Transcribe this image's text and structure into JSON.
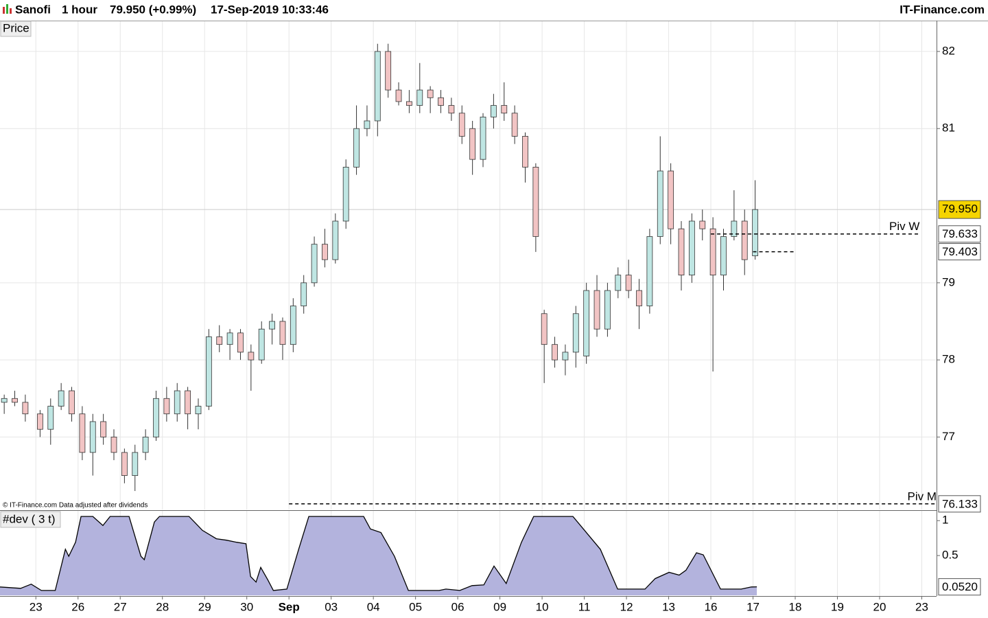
{
  "header": {
    "symbol": "Sanofi",
    "interval": "1 hour",
    "quote": "79.950 (+0.99%)",
    "datetime": "17-Sep-2019 10:33:46",
    "brand": "IT-Finance.com"
  },
  "footnote": "© IT-Finance.com  Data adjusted after dividends",
  "chart_data": [
    {
      "type": "candlestick",
      "panel_label": "Price",
      "xlim": [
        -0.85,
        21.35
      ],
      "ylim": [
        76.06,
        82.4
      ],
      "xticks": [
        {
          "value": 0,
          "label": "23"
        },
        {
          "value": 1,
          "label": "26"
        },
        {
          "value": 2,
          "label": "27"
        },
        {
          "value": 3,
          "label": "28"
        },
        {
          "value": 4,
          "label": "29"
        },
        {
          "value": 5,
          "label": "30"
        },
        {
          "value": 6,
          "label": "Sep"
        },
        {
          "value": 7,
          "label": "03"
        },
        {
          "value": 8,
          "label": "04"
        },
        {
          "value": 9,
          "label": "05"
        },
        {
          "value": 10,
          "label": "06"
        },
        {
          "value": 11,
          "label": "09"
        },
        {
          "value": 12,
          "label": "10"
        },
        {
          "value": 13,
          "label": "11"
        },
        {
          "value": 14,
          "label": "12"
        },
        {
          "value": 15,
          "label": "13"
        },
        {
          "value": 16,
          "label": "16"
        },
        {
          "value": 17,
          "label": "17"
        },
        {
          "value": 18,
          "label": "18"
        },
        {
          "value": 19,
          "label": "19"
        },
        {
          "value": 20,
          "label": "20"
        },
        {
          "value": 21,
          "label": "23"
        }
      ],
      "yticks": [
        77,
        78,
        79,
        81,
        82
      ],
      "grid": true,
      "up_color": "#bfe6e3",
      "down_color": "#f2c4c4",
      "x": [
        -0.75,
        -0.5,
        -0.25,
        0.1,
        0.35,
        0.6,
        0.85,
        1.1,
        1.35,
        1.6,
        1.85,
        2.1,
        2.35,
        2.6,
        2.85,
        3.1,
        3.35,
        3.6,
        3.85,
        4.1,
        4.35,
        4.6,
        4.85,
        5.1,
        5.35,
        5.6,
        5.85,
        6.1,
        6.35,
        6.6,
        6.85,
        7.1,
        7.35,
        7.6,
        7.85,
        8.1,
        8.35,
        8.6,
        8.85,
        9.1,
        9.35,
        9.6,
        9.85,
        10.1,
        10.35,
        10.6,
        10.85,
        11.1,
        11.35,
        11.6,
        11.85,
        12.05,
        12.3,
        12.55,
        12.8,
        13.05,
        13.3,
        13.55,
        13.8,
        14.05,
        14.3,
        14.55,
        14.8,
        15.05,
        15.3,
        15.55,
        15.8,
        16.05,
        16.3,
        16.55,
        16.8,
        17.05
      ],
      "open": [
        77.45,
        77.5,
        77.45,
        77.3,
        77.1,
        77.4,
        77.6,
        77.3,
        76.8,
        77.2,
        77.0,
        76.8,
        76.5,
        76.8,
        77.0,
        77.5,
        77.3,
        77.6,
        77.3,
        77.4,
        78.3,
        78.2,
        78.35,
        78.1,
        78.0,
        78.4,
        78.5,
        78.2,
        78.7,
        79.0,
        79.5,
        79.3,
        79.8,
        80.5,
        81.0,
        81.1,
        82.0,
        81.5,
        81.35,
        81.3,
        81.5,
        81.4,
        81.3,
        81.2,
        81.0,
        80.6,
        81.15,
        81.3,
        81.2,
        80.9,
        80.5,
        78.6,
        78.2,
        78.0,
        78.1,
        78.05,
        78.9,
        78.4,
        78.9,
        79.1,
        78.9,
        78.7,
        79.6,
        80.45,
        79.7,
        79.1,
        79.8,
        79.7,
        79.1,
        79.6,
        79.8,
        79.35
      ],
      "high": [
        77.55,
        77.6,
        77.55,
        77.35,
        77.5,
        77.7,
        77.65,
        77.4,
        77.3,
        77.3,
        77.1,
        76.85,
        76.9,
        77.1,
        77.6,
        77.65,
        77.7,
        77.65,
        77.5,
        78.4,
        78.45,
        78.4,
        78.4,
        78.2,
        78.5,
        78.6,
        78.55,
        78.8,
        79.1,
        79.6,
        79.7,
        79.9,
        80.6,
        81.3,
        81.3,
        82.1,
        82.1,
        81.6,
        81.5,
        81.85,
        81.55,
        81.5,
        81.4,
        81.3,
        81.1,
        81.2,
        81.45,
        81.6,
        81.3,
        80.95,
        80.55,
        78.65,
        78.3,
        78.2,
        78.7,
        79.0,
        79.1,
        79.0,
        79.2,
        79.3,
        79.05,
        79.7,
        80.9,
        80.55,
        79.8,
        79.9,
        79.95,
        79.85,
        79.7,
        80.2,
        79.95,
        80.33
      ],
      "low": [
        77.3,
        77.4,
        77.2,
        77.0,
        76.9,
        77.35,
        77.2,
        76.7,
        76.5,
        76.9,
        76.7,
        76.4,
        76.3,
        76.7,
        76.95,
        77.2,
        77.2,
        77.1,
        77.1,
        77.35,
        78.1,
        78.0,
        78.0,
        77.6,
        77.95,
        78.2,
        78.0,
        78.1,
        78.6,
        78.95,
        79.2,
        79.25,
        79.7,
        80.4,
        80.9,
        80.9,
        81.4,
        81.3,
        81.2,
        81.2,
        81.2,
        81.2,
        81.1,
        80.8,
        80.4,
        80.5,
        81.0,
        81.1,
        80.8,
        80.3,
        79.4,
        77.7,
        77.9,
        77.8,
        77.9,
        77.95,
        78.3,
        78.3,
        78.8,
        78.8,
        78.4,
        78.6,
        79.5,
        79.5,
        78.9,
        79.0,
        79.55,
        77.85,
        78.9,
        79.55,
        79.1,
        79.3
      ],
      "close": [
        77.5,
        77.45,
        77.3,
        77.1,
        77.4,
        77.6,
        77.3,
        76.8,
        77.2,
        77.0,
        76.8,
        76.5,
        76.8,
        77.0,
        77.5,
        77.3,
        77.6,
        77.3,
        77.4,
        78.3,
        78.2,
        78.35,
        78.1,
        78.0,
        78.4,
        78.5,
        78.2,
        78.7,
        79.0,
        79.5,
        79.3,
        79.8,
        80.5,
        81.0,
        81.1,
        82.0,
        81.5,
        81.35,
        81.3,
        81.5,
        81.4,
        81.3,
        81.2,
        80.9,
        80.6,
        81.15,
        81.3,
        81.2,
        80.9,
        80.5,
        79.6,
        78.2,
        78.0,
        78.1,
        78.6,
        78.9,
        78.4,
        78.9,
        79.1,
        78.9,
        78.7,
        79.6,
        80.45,
        79.7,
        79.1,
        79.8,
        79.7,
        79.1,
        79.6,
        79.8,
        79.3,
        79.95
      ],
      "last_price": {
        "value": 79.95,
        "label": "79.950"
      },
      "pivots": [
        {
          "label": "Piv W",
          "value": 79.633,
          "tag": "79.633",
          "x": [
            16,
            20.95
          ]
        },
        {
          "value": 79.403,
          "tag": "79.403",
          "x": [
            17,
            18
          ]
        },
        {
          "label": "Piv M",
          "value": 76.133,
          "tag": "76.133",
          "x": [
            6,
            21.35
          ]
        }
      ]
    },
    {
      "type": "area",
      "panel_label": "#dev ( 3 t)",
      "xlim": [
        -0.85,
        21.35
      ],
      "ylim": [
        -0.06,
        1.11
      ],
      "yticks": [
        1,
        0.5
      ],
      "color": "#b3b3dd",
      "x": [
        -0.85,
        -0.36,
        -0.11,
        0.13,
        0.46,
        0.7,
        0.78,
        0.94,
        1.07,
        1.35,
        1.59,
        1.76,
        2.21,
        2.49,
        2.57,
        2.81,
        2.93,
        3.63,
        3.95,
        4.28,
        4.52,
        4.76,
        4.98,
        5.09,
        5.22,
        5.33,
        5.5,
        5.63,
        5.95,
        6.23,
        6.47,
        7.77,
        7.93,
        8.18,
        8.5,
        8.83,
        9.56,
        9.72,
        10.05,
        10.34,
        10.62,
        10.86,
        11.15,
        11.51,
        11.8,
        12.73,
        13.38,
        13.79,
        14.44,
        14.68,
        15.01,
        15.25,
        15.41,
        15.66,
        15.82,
        16.23,
        16.72,
        16.96,
        17.09
      ],
      "values": [
        0.05,
        0.03,
        0.09,
        0,
        0,
        0.59,
        0.49,
        0.69,
        1.06,
        1.06,
        0.93,
        1.06,
        1.06,
        0.49,
        0.44,
        0.98,
        1.06,
        1.06,
        0.86,
        0.74,
        0.72,
        0.69,
        0.67,
        0.2,
        0.12,
        0.33,
        0.15,
        0,
        0.02,
        0.59,
        1.06,
        1.06,
        0.88,
        0.83,
        0.49,
        0,
        0,
        0.02,
        0,
        0.07,
        0.08,
        0.35,
        0.1,
        0.69,
        1.06,
        1.06,
        0.59,
        0.02,
        0.02,
        0.17,
        0.26,
        0.22,
        0.29,
        0.54,
        0.51,
        0.02,
        0.02,
        0.05,
        0.052
      ],
      "current": {
        "value": 0.052,
        "label": "0.0520"
      }
    }
  ]
}
